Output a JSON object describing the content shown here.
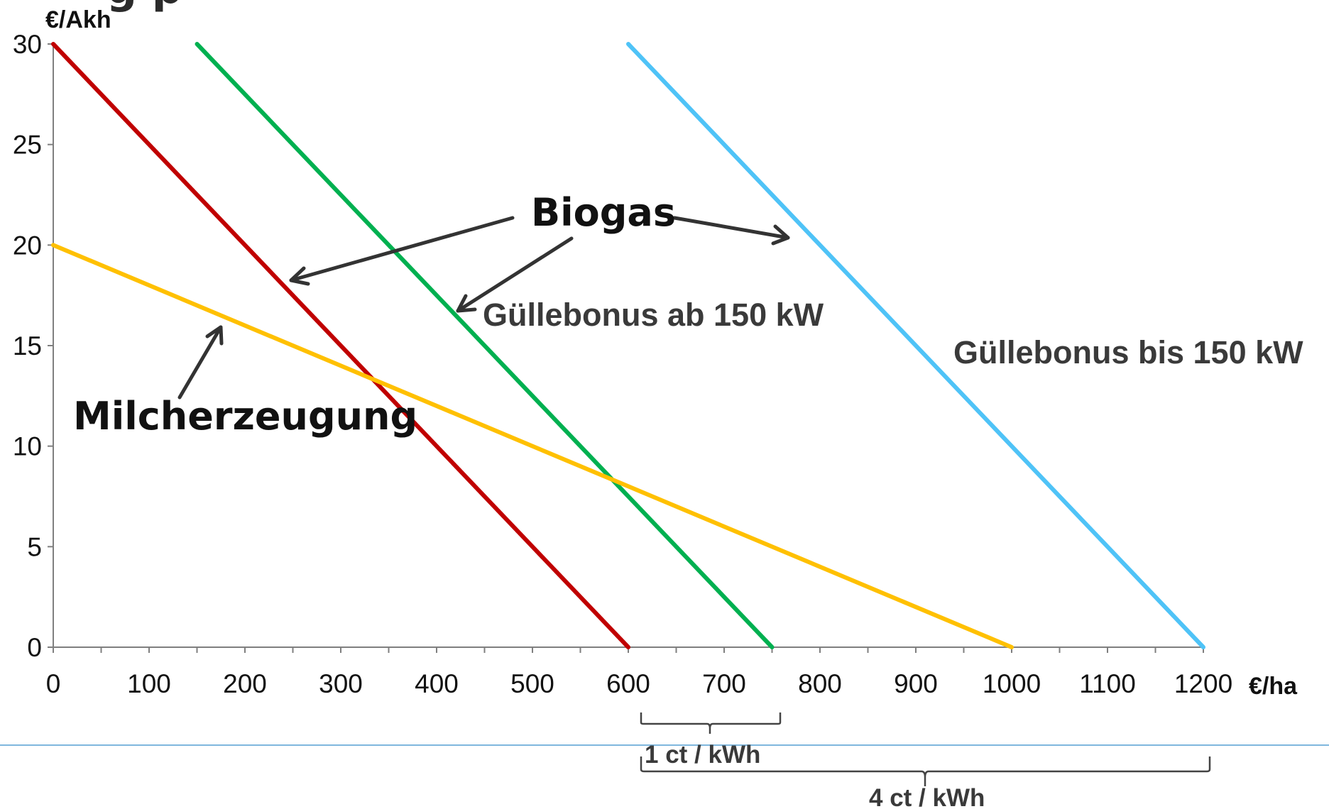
{
  "colors": {
    "axis": "#7f7f7f",
    "arrow": "#333333",
    "bracket": "#444444",
    "separator": "#7fb7de"
  },
  "chart_data": {
    "type": "line",
    "xlabel": "€/ha",
    "ylabel": "€/Akh",
    "xlim": [
      0,
      1200
    ],
    "ylim": [
      0,
      30
    ],
    "x_ticks": [
      0,
      100,
      200,
      300,
      400,
      500,
      600,
      700,
      800,
      900,
      1000,
      1100,
      1200
    ],
    "y_ticks": [
      0,
      5,
      10,
      15,
      20,
      25,
      30
    ],
    "grid": false,
    "series": [
      {
        "color": "#c00000",
        "points": [
          [
            0,
            30
          ],
          [
            600,
            0
          ]
        ]
      },
      {
        "color": "#00b050",
        "points": [
          [
            150,
            30
          ],
          [
            750,
            0
          ]
        ]
      },
      {
        "color": "#4fc3f7",
        "points": [
          [
            600,
            30
          ],
          [
            1200,
            0
          ]
        ]
      },
      {
        "color": "#ffc000",
        "points": [
          [
            0,
            20
          ],
          [
            1000,
            0
          ]
        ]
      }
    ],
    "annotations": {
      "biogas": "Biogas",
      "guelle_ab": "Güllebonus ab 150 kW",
      "guelle_bis": "Güllebonus bis 150 kW",
      "milch": "Milcherzeugung",
      "bracket_1ct": "1 ct / kWh",
      "bracket_4ct": "4 ct / kWh"
    }
  }
}
